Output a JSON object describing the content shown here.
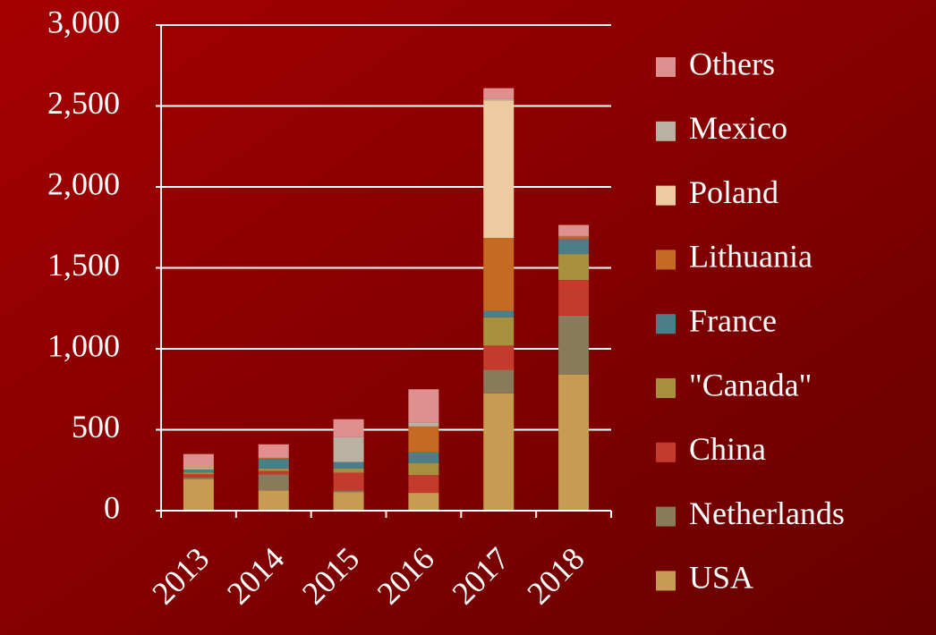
{
  "chart_data": {
    "type": "stacked_bar",
    "categories": [
      "2013",
      "2014",
      "2015",
      "2016",
      "2017",
      "2018"
    ],
    "series": [
      {
        "name": "USA",
        "color": "#c89b52",
        "values": [
          195,
          125,
          115,
          110,
          725,
          840
        ]
      },
      {
        "name": "Netherlands",
        "color": "#8a7a5c",
        "values": [
          10,
          100,
          10,
          0,
          145,
          365
        ]
      },
      {
        "name": "China",
        "color": "#c43a2c",
        "values": [
          20,
          20,
          110,
          110,
          150,
          220
        ]
      },
      {
        "name": "\"Canada\"",
        "color": "#a8913e",
        "values": [
          10,
          15,
          25,
          75,
          175,
          160
        ]
      },
      {
        "name": "France",
        "color": "#4b7f87",
        "values": [
          15,
          60,
          40,
          65,
          40,
          95
        ]
      },
      {
        "name": "Lithuania",
        "color": "#c56a24",
        "values": [
          5,
          5,
          0,
          160,
          450,
          15
        ]
      },
      {
        "name": "Poland",
        "color": "#edcaa0",
        "values": [
          0,
          0,
          0,
          0,
          850,
          0
        ]
      },
      {
        "name": "Mexico",
        "color": "#b9b1a1",
        "values": [
          15,
          5,
          155,
          25,
          10,
          5
        ]
      },
      {
        "name": "Others",
        "color": "#e08f8f",
        "values": [
          80,
          80,
          110,
          205,
          65,
          65
        ]
      }
    ],
    "ylim": [
      0,
      3000
    ],
    "yticks": [
      0,
      {
        "value": 500,
        "label": "500"
      },
      {
        "value": 1000,
        "label": "1,000"
      },
      {
        "value": 1500,
        "label": "1,500"
      },
      {
        "value": 2000,
        "label": "2,000"
      },
      {
        "value": 2500,
        "label": "2,500"
      },
      {
        "value": 3000,
        "label": "3,000"
      }
    ],
    "grid": true,
    "legend": "right"
  }
}
